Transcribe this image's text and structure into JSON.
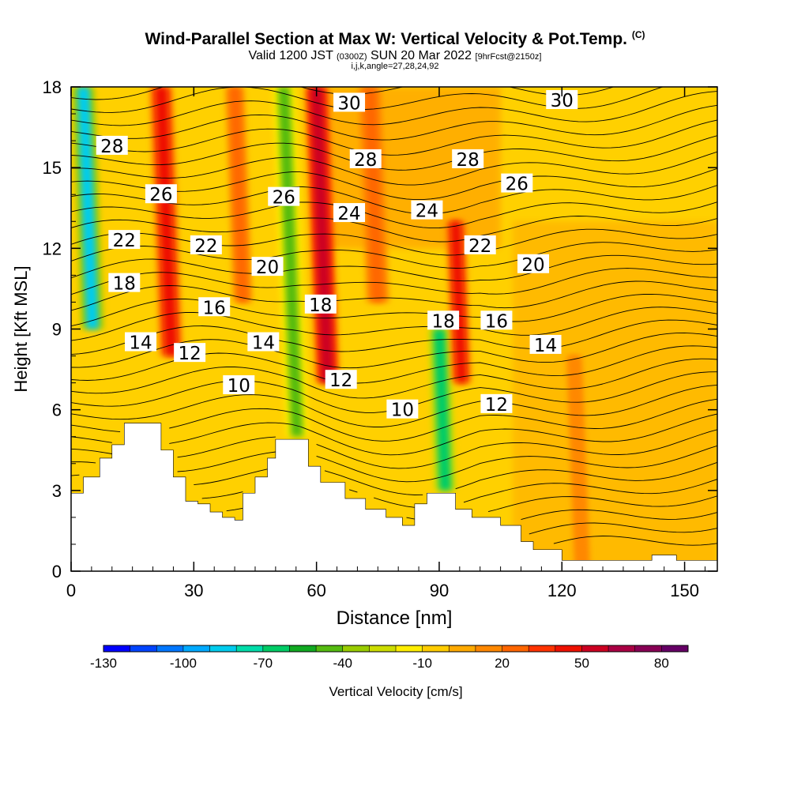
{
  "title": "Wind-Parallel Section at Max W: Vertical Velocity & Pot.Temp.",
  "title_mark": "(C)",
  "subtitle_main": "Valid 1200 JST",
  "subtitle_z": "(0300Z)",
  "subtitle_date": "SUN 20 Mar 2022",
  "subtitle_fcst": "[9hrFcst@2150z]",
  "subnote": "i,j,k,angle=27,28,24,92",
  "chart_data": {
    "type": "heatmap",
    "xlabel": "Distance [nm]",
    "ylabel": "Height [Kft MSL]",
    "xlim": [
      0,
      158
    ],
    "ylim": [
      0,
      18
    ],
    "x_ticks": [
      0,
      30,
      60,
      90,
      120,
      150
    ],
    "y_ticks": [
      0,
      3,
      6,
      9,
      12,
      15,
      18
    ],
    "colorbar": {
      "label": "Vertical Velocity [cm/s]",
      "tick_labels": [
        "-130",
        "-100",
        "-70",
        "-40",
        "-10",
        "20",
        "50",
        "80"
      ],
      "min": -130,
      "max": 90,
      "step": 10,
      "colors": [
        "#0000ff",
        "#0044ff",
        "#0077ff",
        "#00aaff",
        "#00ccee",
        "#00ddaa",
        "#00cc66",
        "#11aa22",
        "#55bb11",
        "#99cc00",
        "#ccdd00",
        "#ffee00",
        "#ffcc00",
        "#ffaa00",
        "#ff8800",
        "#ff6600",
        "#ff3300",
        "#ee1100",
        "#cc0022",
        "#aa0044",
        "#880055",
        "#660066"
      ]
    },
    "velocity_bands": [
      {
        "x": 3,
        "y0": 9,
        "y1": 18,
        "value": -85,
        "width": 3
      },
      {
        "x": 22,
        "y0": 8,
        "y1": 18,
        "value": 45,
        "width": 3
      },
      {
        "x": 40,
        "y0": 10,
        "y1": 18,
        "value": 25,
        "width": 2.5
      },
      {
        "x": 52,
        "y0": 5,
        "y1": 18,
        "value": -45,
        "width": 3
      },
      {
        "x": 60,
        "y0": 7,
        "y1": 18,
        "value": 50,
        "width": 3
      },
      {
        "x": 73,
        "y0": 10,
        "y1": 18,
        "value": 20,
        "width": 3
      },
      {
        "x": 90,
        "y0": 3,
        "y1": 9,
        "value": -70,
        "width": 3
      },
      {
        "x": 94,
        "y0": 7,
        "y1": 13,
        "value": 45,
        "width": 2.5
      },
      {
        "x": 123,
        "y0": 0,
        "y1": 8,
        "value": 18,
        "width": 2
      }
    ],
    "theta_labels": [
      {
        "text": "30",
        "x": 68,
        "y": 17.4
      },
      {
        "text": "30",
        "x": 120,
        "y": 17.5
      },
      {
        "text": "28",
        "x": 10,
        "y": 15.8
      },
      {
        "text": "28",
        "x": 72,
        "y": 15.3
      },
      {
        "text": "28",
        "x": 97,
        "y": 15.3
      },
      {
        "text": "26",
        "x": 22,
        "y": 14.0
      },
      {
        "text": "26",
        "x": 52,
        "y": 13.9
      },
      {
        "text": "26",
        "x": 109,
        "y": 14.4
      },
      {
        "text": "24",
        "x": 68,
        "y": 13.3
      },
      {
        "text": "24",
        "x": 87,
        "y": 13.4
      },
      {
        "text": "22",
        "x": 13,
        "y": 12.3
      },
      {
        "text": "22",
        "x": 33,
        "y": 12.1
      },
      {
        "text": "22",
        "x": 100,
        "y": 12.1
      },
      {
        "text": "20",
        "x": 48,
        "y": 11.3
      },
      {
        "text": "20",
        "x": 113,
        "y": 11.4
      },
      {
        "text": "18",
        "x": 13,
        "y": 10.7
      },
      {
        "text": "18",
        "x": 61,
        "y": 9.9
      },
      {
        "text": "18",
        "x": 91,
        "y": 9.3
      },
      {
        "text": "16",
        "x": 35,
        "y": 9.8
      },
      {
        "text": "16",
        "x": 104,
        "y": 9.3
      },
      {
        "text": "14",
        "x": 17,
        "y": 8.5
      },
      {
        "text": "14",
        "x": 47,
        "y": 8.5
      },
      {
        "text": "14",
        "x": 116,
        "y": 8.4
      },
      {
        "text": "12",
        "x": 29,
        "y": 8.1
      },
      {
        "text": "12",
        "x": 66,
        "y": 7.1
      },
      {
        "text": "12",
        "x": 104,
        "y": 6.2
      },
      {
        "text": "10",
        "x": 41,
        "y": 6.9
      },
      {
        "text": "10",
        "x": 81,
        "y": 6.0
      }
    ],
    "terrain": [
      [
        0,
        2.9
      ],
      [
        3,
        3.5
      ],
      [
        7,
        4.2
      ],
      [
        10,
        4.7
      ],
      [
        13,
        5.5
      ],
      [
        19,
        5.5
      ],
      [
        22,
        4.5
      ],
      [
        25,
        3.5
      ],
      [
        28,
        2.6
      ],
      [
        31,
        2.5
      ],
      [
        34,
        2.2
      ],
      [
        37,
        2.0
      ],
      [
        40,
        1.9
      ],
      [
        42,
        2.9
      ],
      [
        45,
        3.5
      ],
      [
        48,
        4.2
      ],
      [
        50,
        4.9
      ],
      [
        56,
        4.9
      ],
      [
        58,
        3.9
      ],
      [
        61,
        3.3
      ],
      [
        67,
        2.7
      ],
      [
        72,
        2.3
      ],
      [
        77,
        2.0
      ],
      [
        81,
        1.7
      ],
      [
        84,
        2.5
      ],
      [
        87,
        2.9
      ],
      [
        91,
        2.9
      ],
      [
        94,
        2.3
      ],
      [
        98,
        2.0
      ],
      [
        105,
        1.7
      ],
      [
        110,
        1.1
      ],
      [
        113,
        0.8
      ],
      [
        120,
        0.4
      ],
      [
        132,
        0.4
      ],
      [
        142,
        0.6
      ],
      [
        148,
        0.4
      ],
      [
        158,
        0.4
      ]
    ]
  }
}
